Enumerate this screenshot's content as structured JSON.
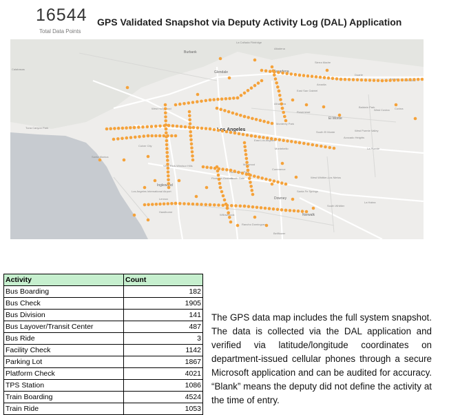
{
  "kpi": {
    "value": "16544",
    "label": "Total Data Points"
  },
  "title": "GPS Validated Snapshot via Deputy Activity Log (DAL) Application",
  "map": {
    "marker_color": "#f5a23a",
    "labels": {
      "la_canada": "La Cañada Flintridge",
      "altadena": "Altadena",
      "sierra_madre": "Sierra Madre",
      "burbank": "Burbank",
      "glendale": "Glendale",
      "pasadena": "Pasadena",
      "duarte": "Duarte",
      "arcadia": "Arcadia",
      "calabasas": "Calabasas",
      "east_san_gabriel": "East San Gabriel",
      "alhambra": "Alhambra",
      "rosemead": "Rosemead",
      "el_monte": "El Monte",
      "baldwin_park": "Baldwin Park",
      "west_covina": "West Covina",
      "covina": "Covina",
      "west_hollywood": "West Hollywood",
      "monterey_park": "Monterey Park",
      "topanga": "Tuna Canyon Park",
      "los_angeles": "Los Angeles",
      "south_el_monte": "South El Monte",
      "west_puente": "West Puente Valley",
      "avocado": "Avocado Heights",
      "east_la": "East Los Angeles",
      "culver_city": "Culver City",
      "montebello": "Montebello",
      "la_puente": "La Puente",
      "santa_monica": "Santa Monica",
      "view_park": "View Park-Windsor Hills",
      "maywood": "Maywood",
      "commerce": "Commerce",
      "huntington_park": "Huntington Park",
      "south_gate": "South Gate",
      "florence": "Florence-Graham",
      "west_whittier": "West Whittier-Los Nietos",
      "inglewood": "Inglewood",
      "lax": "Los Angeles International Airport",
      "lennox": "Lennox",
      "downey": "Downey",
      "santa_fe_springs": "Santa Fe Springs",
      "la_habra": "La Habra",
      "south_whittier": "South Whittier",
      "hawthorne": "Hawthorne",
      "willowbrook": "Willowbrook",
      "norwalk": "Norwalk",
      "rancho": "Rancho Dominguez",
      "bellflower": "Bellflower",
      "glendora": "Glendora",
      "azusa": "Azusa"
    }
  },
  "table": {
    "headers": [
      "Activity",
      "Count"
    ],
    "rows": [
      [
        "Bus Boarding",
        "182"
      ],
      [
        "Bus Check",
        "1905"
      ],
      [
        "Bus Division",
        "141"
      ],
      [
        "Bus Layover/Transit Center",
        "487"
      ],
      [
        "Bus Ride",
        "3"
      ],
      [
        "Facility Check",
        "1142"
      ],
      [
        "Parking Lot",
        "1867"
      ],
      [
        "Platform Check",
        "4021"
      ],
      [
        "TPS Station",
        "1086"
      ],
      [
        "Train Boarding",
        "4524"
      ],
      [
        "Train Ride",
        "1053"
      ]
    ]
  },
  "description": "The GPS data map includes the full system snapshot. The data is collected via the DAL application and verified via latitude/longitude coordinates on department-issued cellular phones through a secure Microsoft application and can be audited for accuracy. “Blank” means the deputy did not define the activity at the time of entry."
}
